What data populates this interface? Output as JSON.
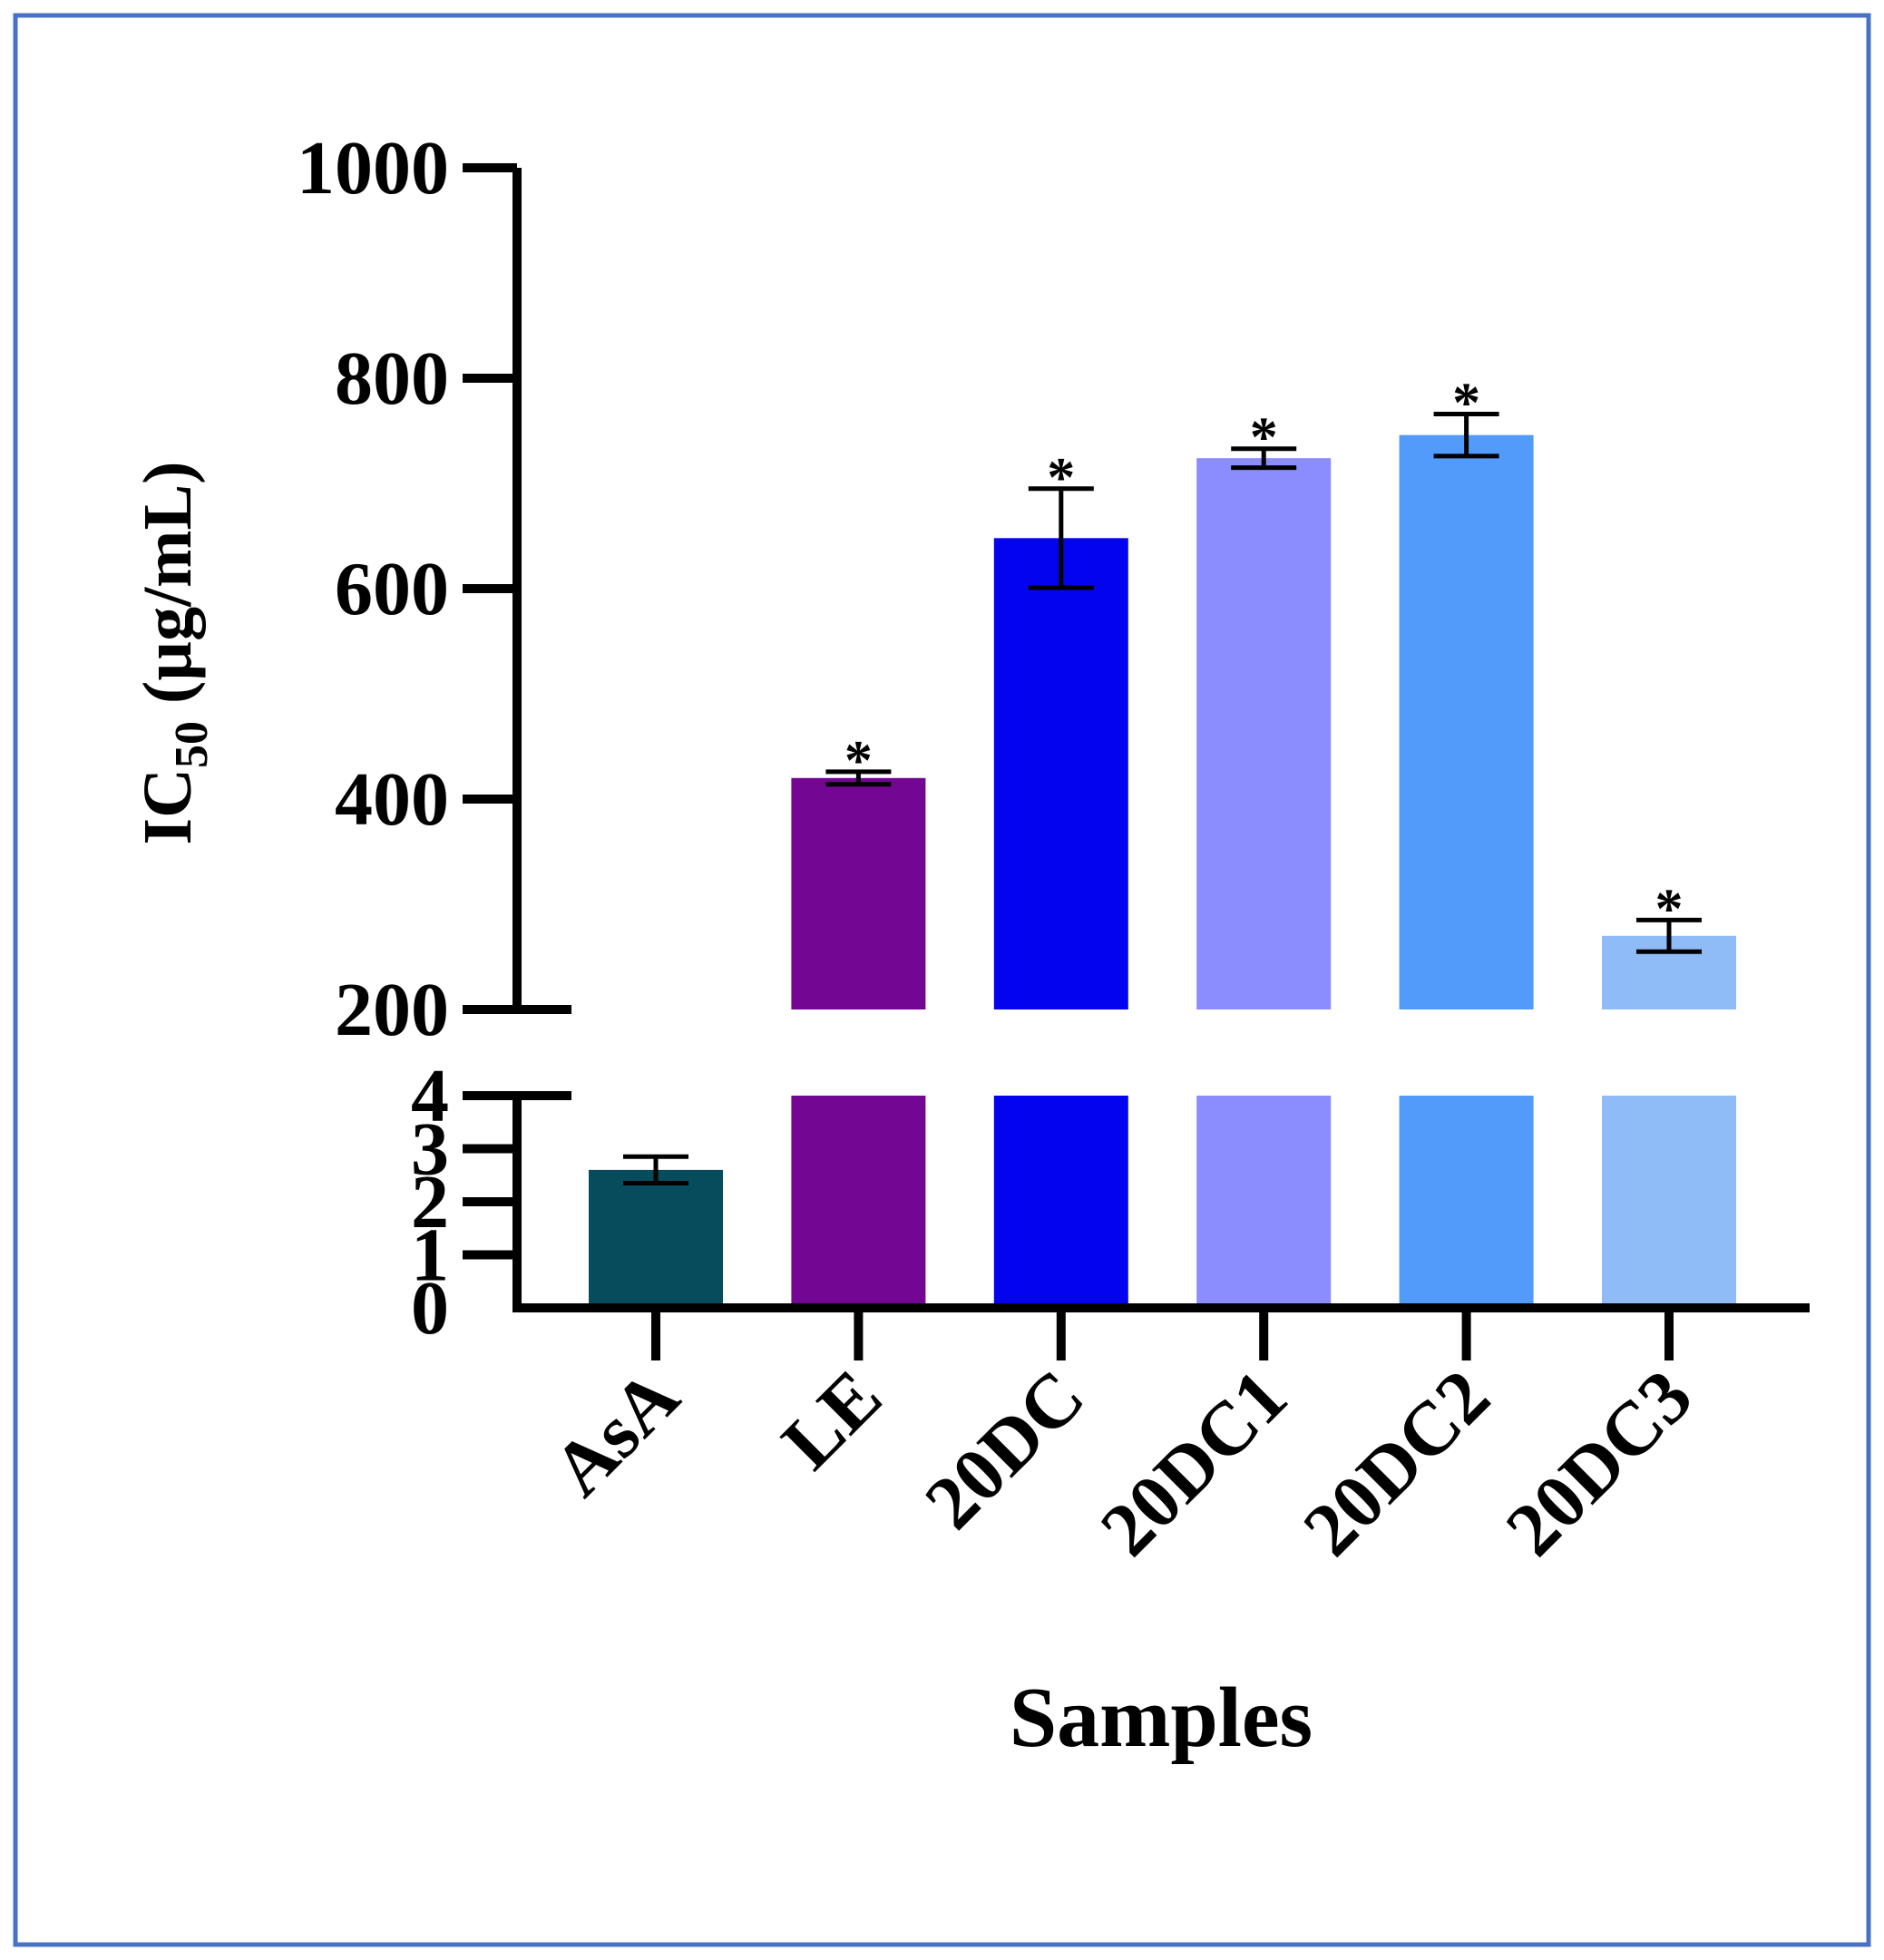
{
  "chart_data": {
    "type": "bar",
    "title": "",
    "xlabel": "Samples",
    "ylabel_main": "IC",
    "ylabel_sub": "50",
    "ylabel_unit": " (µg/mL)",
    "categories": [
      "AsA",
      "LE",
      "20DC",
      "20DC1",
      "20DC2",
      "20DC3"
    ],
    "values": [
      2.6,
      420,
      648,
      724,
      746,
      270
    ],
    "errors": [
      0.25,
      6,
      47,
      9,
      20,
      15
    ],
    "significance": [
      "",
      "*",
      "*",
      "*",
      "*",
      "*"
    ],
    "colors": [
      "#064c5c",
      "#740694",
      "#0303f0",
      "#8b8cfd",
      "#529bfa",
      "#8fbbf7"
    ],
    "axis_break": true,
    "lower_segment": {
      "ylim": [
        0,
        4
      ],
      "ticks": [
        "0",
        "1",
        "2",
        "3",
        "4"
      ]
    },
    "upper_segment": {
      "ylim": [
        200,
        1000
      ],
      "ticks": [
        "200",
        "400",
        "600",
        "800",
        "1000"
      ]
    }
  },
  "frame_color": "#4a72c4"
}
